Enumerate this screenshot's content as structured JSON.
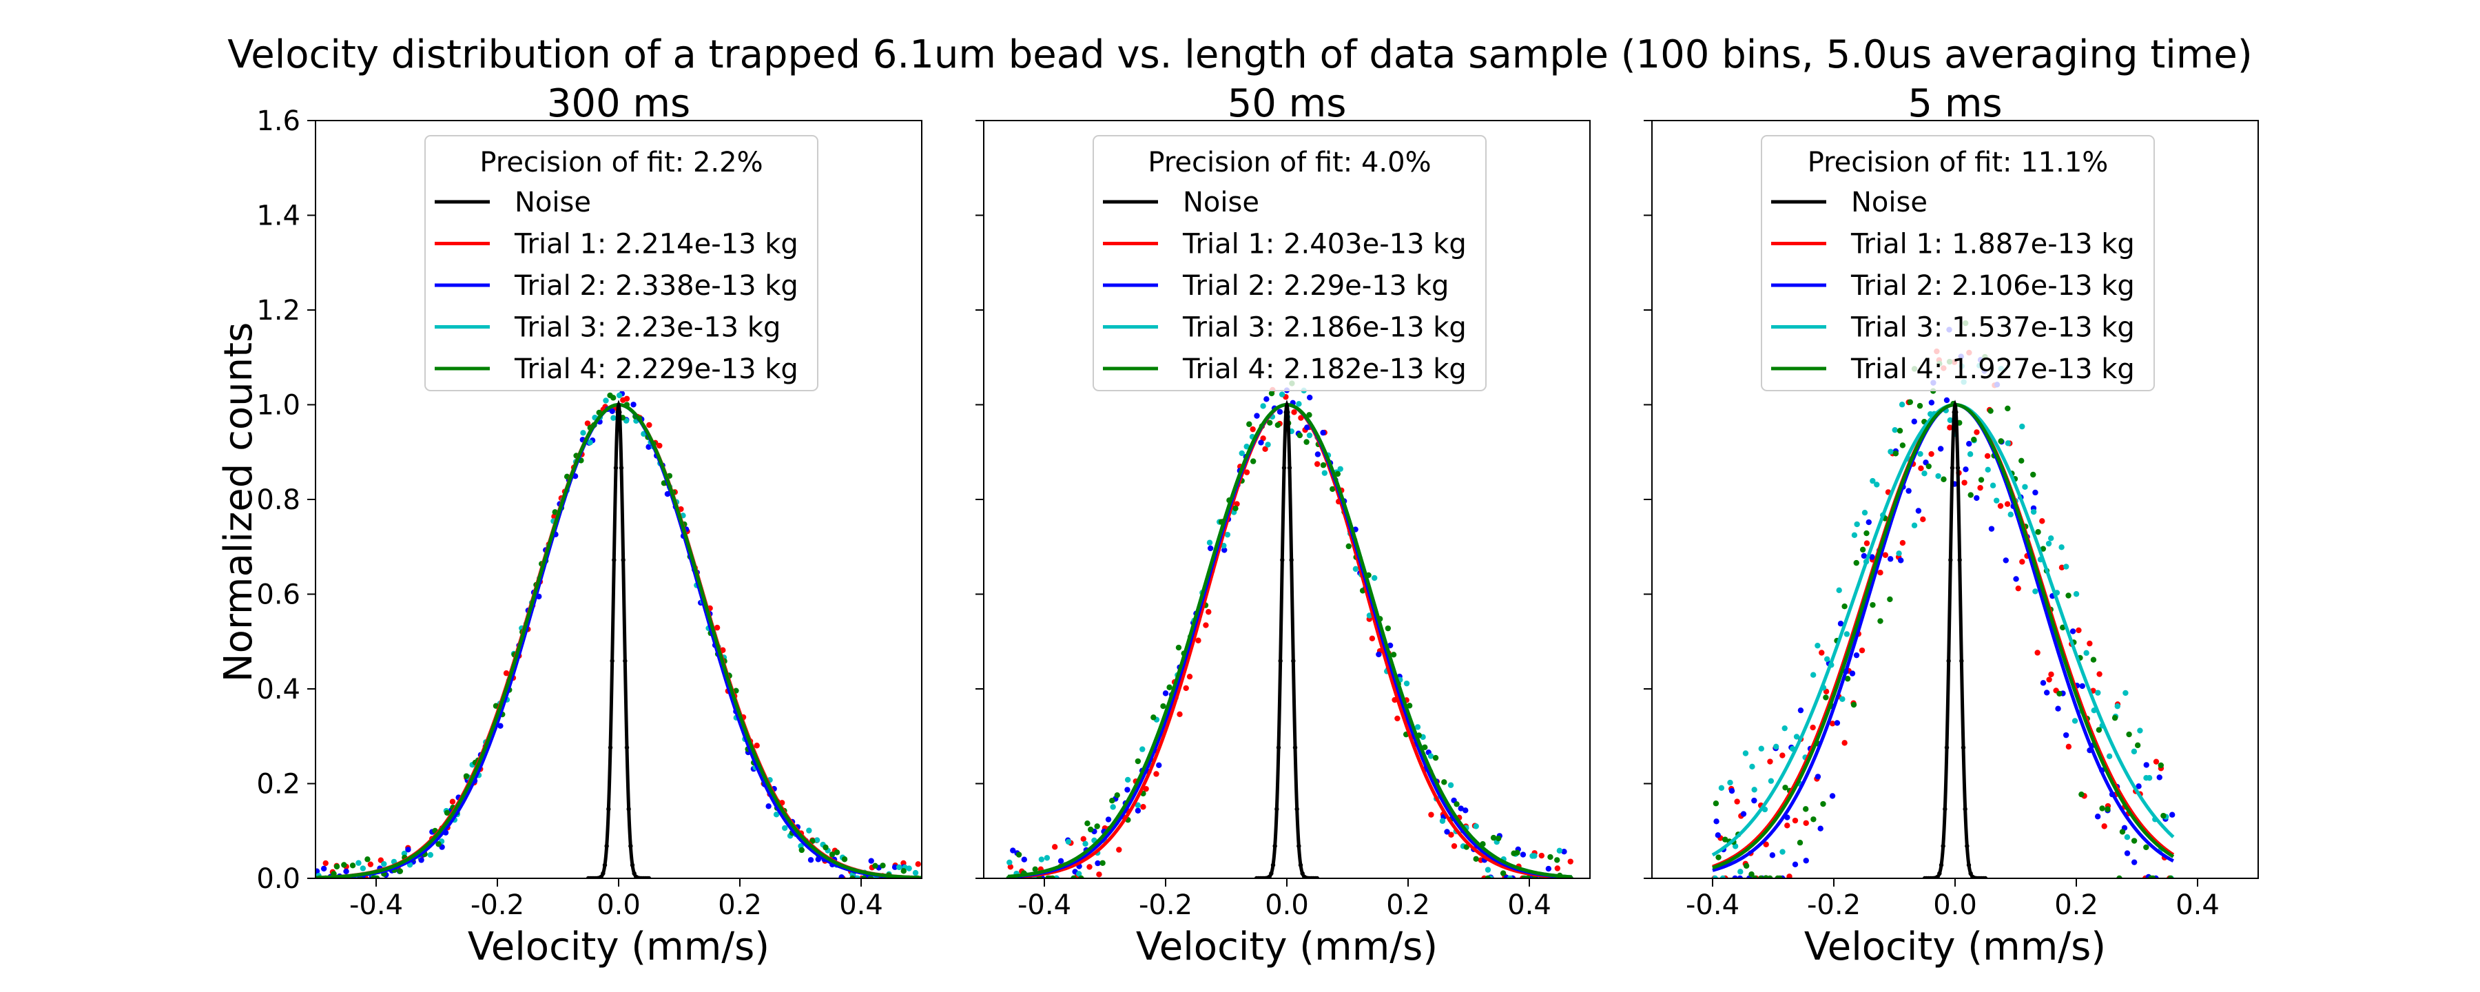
{
  "figure": {
    "suptitle": "Velocity distribution of a trapped 6.1um bead vs. length of data sample (100 bins, 5.0us averaging time)",
    "ylabel": "Normalized counts"
  },
  "chart_data": [
    {
      "type": "line",
      "title": "300 ms",
      "xlabel": "Velocity (mm/s)",
      "ylabel": "Normalized counts",
      "xlim": [
        -0.5,
        0.5
      ],
      "ylim": [
        0,
        1.6
      ],
      "xticks": [
        "-0.4",
        "-0.2",
        "0.0",
        "0.2",
        "0.4"
      ],
      "yticks": [
        "0.0",
        "0.2",
        "0.4",
        "0.6",
        "0.8",
        "1.0",
        "1.2",
        "1.4",
        "1.6"
      ],
      "legend_title": "Precision of fit: 2.2%",
      "legend_position": "top-center",
      "noise": {
        "name": "Noise",
        "color": "#000000",
        "center": 0.0,
        "sigma": 0.0085,
        "peak": 1.0
      },
      "series": [
        {
          "name": "Trial 1: 2.214e-13 kg",
          "color": "#ff0000",
          "center": 0.0,
          "sigma": 0.138,
          "peak": 1.0
        },
        {
          "name": "Trial 2: 2.338e-13 kg",
          "color": "#0000ff",
          "center": 0.0,
          "sigma": 0.134,
          "peak": 1.0
        },
        {
          "name": "Trial 3: 2.23e-13 kg",
          "color": "#00bfbf",
          "center": 0.0,
          "sigma": 0.137,
          "peak": 1.0
        },
        {
          "name": "Trial 4: 2.229e-13 kg",
          "color": "#008000",
          "center": 0.0,
          "sigma": 0.137,
          "peak": 1.0
        }
      ],
      "fit_range": [
        -0.5,
        0.5
      ],
      "scatter_noise": 0.03
    },
    {
      "type": "line",
      "title": "50 ms",
      "xlabel": "Velocity (mm/s)",
      "ylabel": "",
      "xlim": [
        -0.5,
        0.5
      ],
      "ylim": [
        0,
        1.6
      ],
      "xticks": [
        "-0.4",
        "-0.2",
        "0.0",
        "0.2",
        "0.4"
      ],
      "yticks": [],
      "legend_title": "Precision of fit: 4.0%",
      "legend_position": "top-center",
      "noise": {
        "name": "Noise",
        "color": "#000000",
        "center": 0.0,
        "sigma": 0.0085,
        "peak": 1.0
      },
      "series": [
        {
          "name": "Trial 1: 2.403e-13 kg",
          "color": "#ff0000",
          "center": 0.0,
          "sigma": 0.131,
          "peak": 1.0
        },
        {
          "name": "Trial 2: 2.29e-13 kg",
          "color": "#0000ff",
          "center": 0.0,
          "sigma": 0.135,
          "peak": 1.0
        },
        {
          "name": "Trial 3: 2.186e-13 kg",
          "color": "#00bfbf",
          "center": 0.0,
          "sigma": 0.138,
          "peak": 1.0
        },
        {
          "name": "Trial 4: 2.182e-13 kg",
          "color": "#008000",
          "center": 0.0,
          "sigma": 0.138,
          "peak": 1.0
        }
      ],
      "fit_range": [
        -0.46,
        0.47
      ],
      "scatter_noise": 0.06
    },
    {
      "type": "line",
      "title": "5 ms",
      "xlabel": "Velocity (mm/s)",
      "ylabel": "",
      "xlim": [
        -0.5,
        0.5
      ],
      "ylim": [
        0,
        1.6
      ],
      "xticks": [
        "-0.4",
        "-0.2",
        "0.0",
        "0.2",
        "0.4"
      ],
      "yticks": [],
      "legend_title": "Precision of fit: 11.1%",
      "legend_position": "top-center",
      "noise": {
        "name": "Noise",
        "color": "#000000",
        "center": 0.0,
        "sigma": 0.0085,
        "peak": 1.0
      },
      "series": [
        {
          "name": "Trial 1: 1.887e-13 kg",
          "color": "#ff0000",
          "center": 0.0,
          "sigma": 0.147,
          "peak": 1.0
        },
        {
          "name": "Trial 2: 2.106e-13 kg",
          "color": "#0000ff",
          "center": 0.0,
          "sigma": 0.14,
          "peak": 1.0
        },
        {
          "name": "Trial 3: 1.537e-13 kg",
          "color": "#00bfbf",
          "center": 0.0,
          "sigma": 0.163,
          "peak": 1.0
        },
        {
          "name": "Trial 4: 1.927e-13 kg",
          "color": "#008000",
          "center": 0.0,
          "sigma": 0.145,
          "peak": 1.0
        }
      ],
      "fit_range": [
        -0.4,
        0.36
      ],
      "scatter_noise": 0.18
    }
  ]
}
